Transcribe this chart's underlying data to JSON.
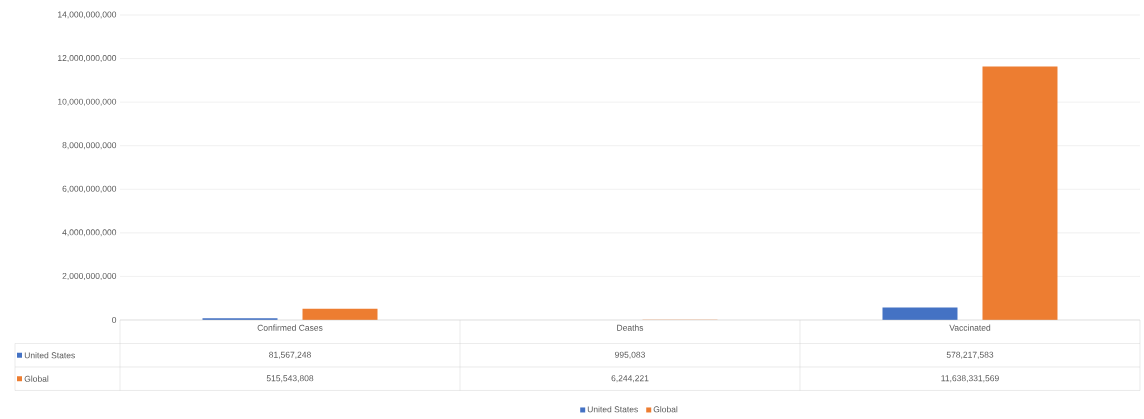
{
  "chart_data": {
    "type": "bar",
    "categories": [
      "Confirmed Cases",
      "Deaths",
      "Vaccinated"
    ],
    "series": [
      {
        "name": "United States",
        "color": "#4472c4",
        "values": [
          81567248,
          995083,
          578217583
        ],
        "value_labels": [
          "81,567,248",
          "995,083",
          "578,217,583"
        ]
      },
      {
        "name": "Global",
        "color": "#ed7d31",
        "values": [
          515543808,
          6244221,
          11638331569
        ],
        "value_labels": [
          "515,543,808",
          "6,244,221",
          "11,638,331,569"
        ]
      }
    ],
    "ylim": [
      0,
      14000000000
    ],
    "yticks": [
      0,
      {
        "value": 2000000000,
        "label": "2,000,000,000"
      },
      {
        "value": 4000000000,
        "label": "4,000,000,000"
      },
      {
        "value": 6000000000,
        "label": "6,000,000,000"
      },
      {
        "value": 8000000000,
        "label": "8,000,000,000"
      },
      {
        "value": 10000000000,
        "label": "10,000,000,000"
      },
      {
        "value": 12000000000,
        "label": "12,000,000,000"
      },
      {
        "value": 14000000000,
        "label": "14,000,000,000"
      }
    ],
    "grid": "y",
    "legend": "bottom"
  }
}
